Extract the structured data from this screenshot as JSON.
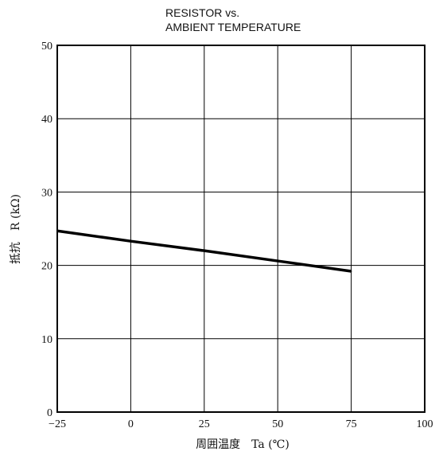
{
  "chart_data": {
    "type": "line",
    "title_lines": [
      "RESISTOR vs.",
      "AMBIENT TEMPERATURE"
    ],
    "xlabel": "周囲温度　Ta (℃)",
    "ylabel": "抵抗　R (kΩ)",
    "xlim": [
      -25,
      100
    ],
    "ylim": [
      0,
      50
    ],
    "x_ticks": [
      -25,
      0,
      25,
      50,
      75,
      100
    ],
    "x_tick_labels": [
      "−25",
      "0",
      "25",
      "50",
      "75",
      "100"
    ],
    "y_ticks": [
      0,
      10,
      20,
      30,
      40,
      50
    ],
    "grid": true,
    "series": [
      {
        "x": [
          -25,
          0,
          25,
          50,
          75
        ],
        "y": [
          24.7,
          23.3,
          22.0,
          20.6,
          19.2
        ]
      }
    ]
  }
}
